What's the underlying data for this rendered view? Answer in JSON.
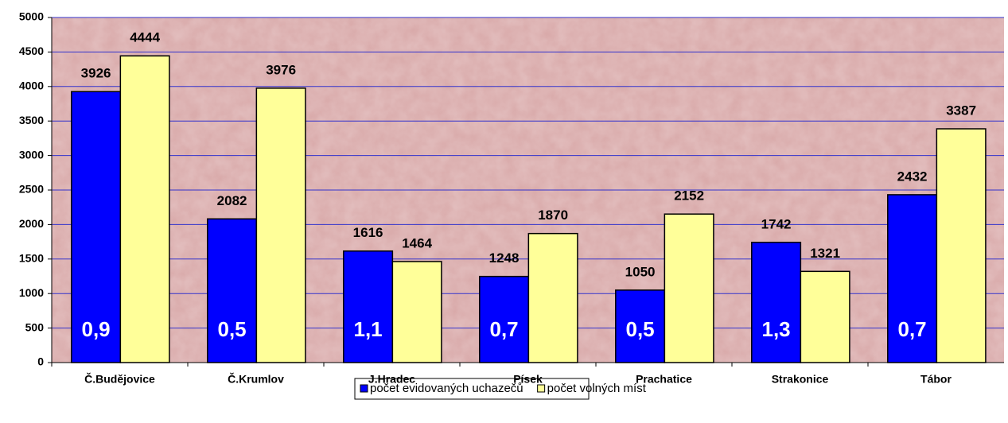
{
  "chart_data": {
    "type": "bar",
    "categories": [
      "Č.Budějovice",
      "Č.Krumlov",
      "J.Hradec",
      "Písek",
      "Prachatice",
      "Strakonice",
      "Tábor"
    ],
    "series": [
      {
        "name": "počet evidovaných uchazečů",
        "color": "#0000ff",
        "values": [
          3926,
          2082,
          1616,
          1248,
          1050,
          1742,
          2432
        ]
      },
      {
        "name": "počet volných míst",
        "color": "#ffff99",
        "values": [
          4444,
          3976,
          1464,
          1870,
          2152,
          1321,
          3387
        ]
      }
    ],
    "annotations": [
      "0,9",
      "0,5",
      "1,1",
      "0,7",
      "0,5",
      "1,3",
      "0,7"
    ],
    "ylim": [
      0,
      5000
    ],
    "yticks": [
      0,
      500,
      1000,
      1500,
      2000,
      2500,
      3000,
      3500,
      4000,
      4500,
      5000
    ],
    "grid": true,
    "grid_color": "#3333cc",
    "legend": "bottom"
  }
}
